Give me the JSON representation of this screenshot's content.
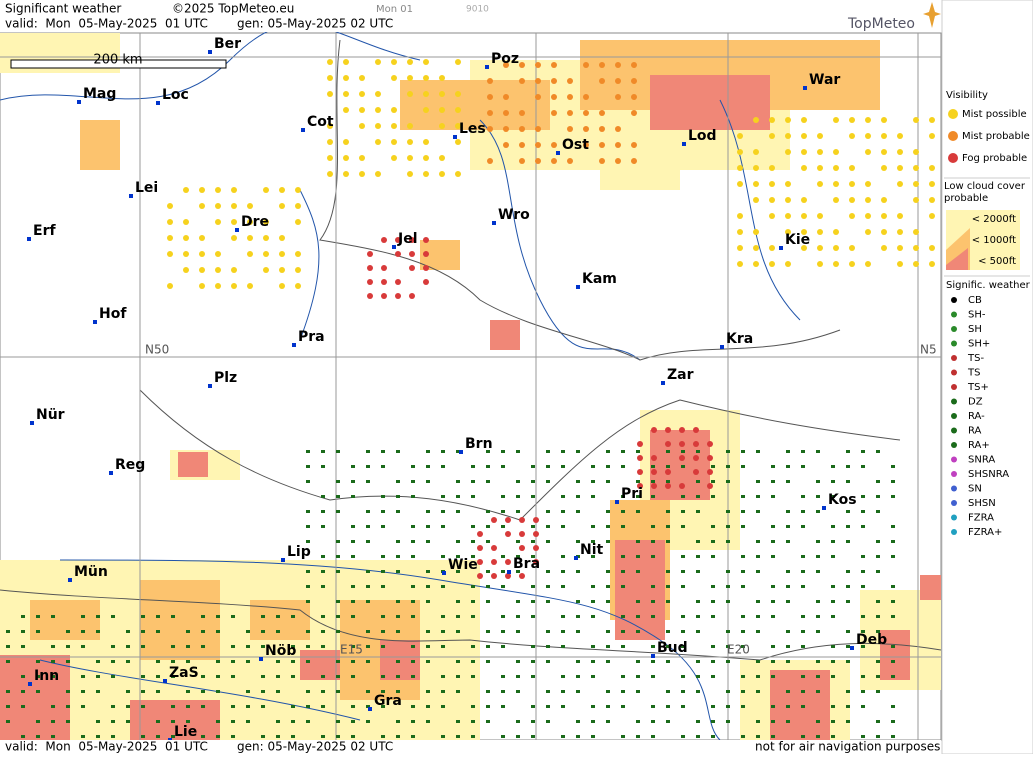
{
  "header": {
    "title": "Significant weather",
    "copyright": "©2025 TopMeteo.eu",
    "valid": "valid:  Mon  05-May-2025  01 UTC",
    "gen": "gen: 05-May-2025 02 UTC",
    "run": "Mon 01",
    "code": "9010",
    "brand": "TopMeteo"
  },
  "map": {
    "scale": "200 km",
    "grid_labels": [
      "N50",
      "N5",
      "E15",
      "E20"
    ],
    "cities": [
      "Ber",
      "Poz",
      "War",
      "Mag",
      "Loc",
      "Cot",
      "Les",
      "Ost",
      "Lod",
      "Lei",
      "Wro",
      "Erf",
      "Dre",
      "Jel",
      "Kie",
      "Kam",
      "Hof",
      "Pra",
      "Kra",
      "Plz",
      "Zar",
      "Nür",
      "Brn",
      "Reg",
      "Pri",
      "Kos",
      "Lip",
      "Nit",
      "Wie",
      "Bra",
      "Mün",
      "Nöb",
      "Bud",
      "Deb",
      "ZaS",
      "Inn",
      "Gra",
      "Lie"
    ]
  },
  "legend": {
    "visibility": {
      "title": "Visibility",
      "items": [
        "Mist possible",
        "Mist probable",
        "Fog probable"
      ]
    },
    "low_cloud": {
      "title": "Low cloud cover probable",
      "items": [
        "< 2000ft",
        "< 1000ft",
        "<  500ft"
      ]
    },
    "weather": {
      "title": "Signific. weather",
      "items": [
        "CB",
        "SH-",
        "SH",
        "SH+",
        "TS-",
        "TS",
        "TS+",
        "DZ",
        "RA-",
        "RA",
        "RA+",
        "SNRA",
        "SHSNRA",
        "SN",
        "SHSN",
        "FZRA",
        "FZRA+"
      ]
    }
  },
  "footer": {
    "valid": "valid:  Mon  05-May-2025  01 UTC",
    "gen": "gen: 05-May-2025 02 UTC",
    "note": "not for air navigation purposes"
  }
}
